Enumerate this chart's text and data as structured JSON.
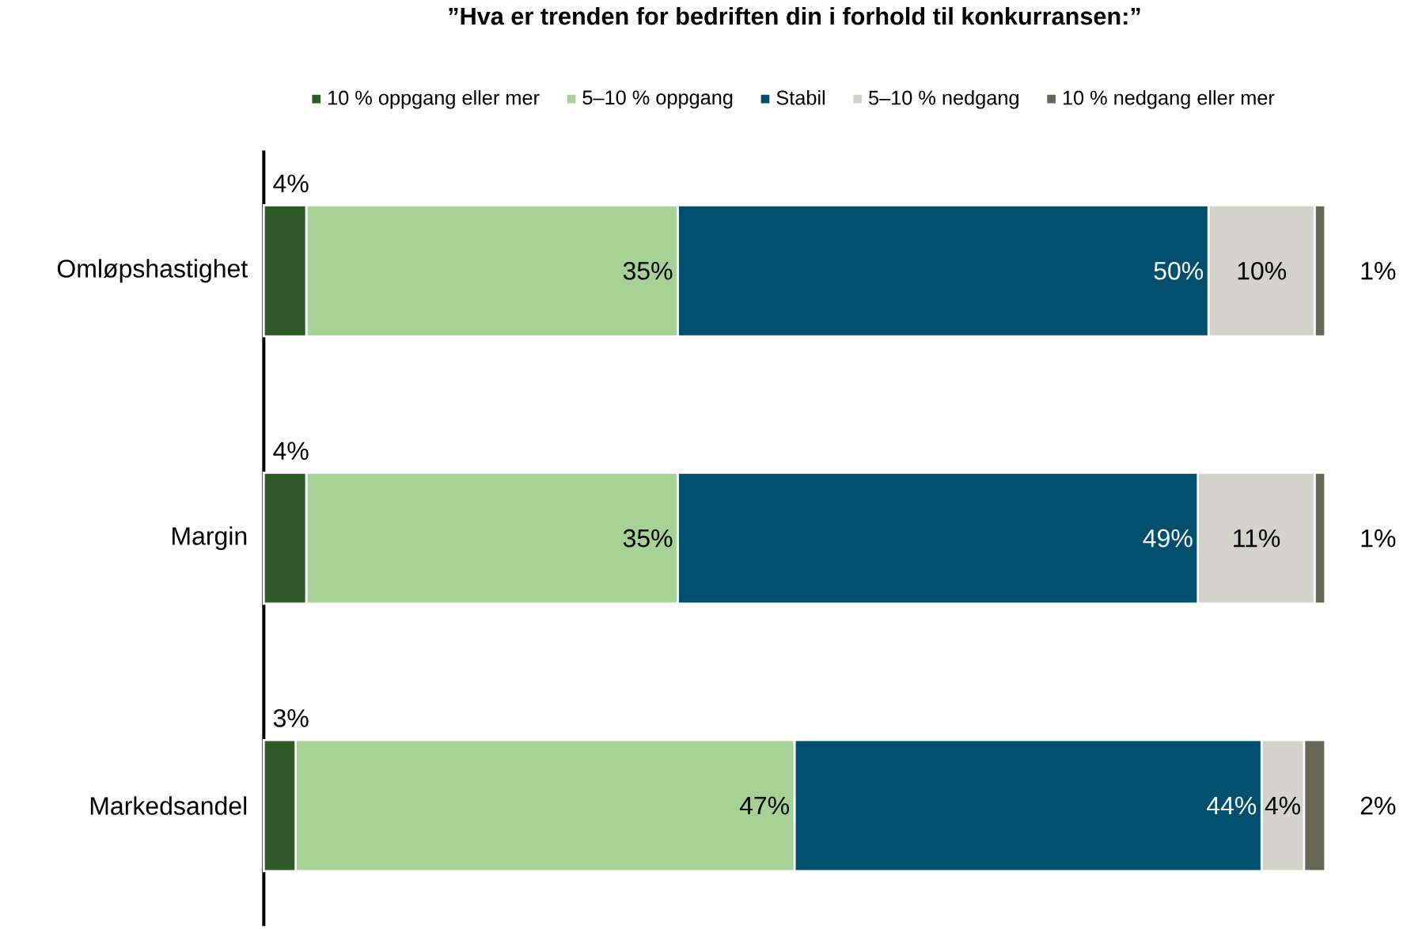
{
  "chart_data": {
    "type": "bar",
    "orientation": "horizontal",
    "stacked": true,
    "title": "”Hva er trenden for bedriften din i forhold til konkurransen:”",
    "categories": [
      "Omløpshastighet",
      "Margin",
      "Markedsandel"
    ],
    "xlim": [
      0,
      100
    ],
    "tick_labels": "y",
    "legend": "top",
    "series": [
      {
        "name": "10 % oppgang eller mer",
        "color": "#2d5a27",
        "values": [
          4,
          4,
          3
        ],
        "value_labels": [
          "4%",
          "4%",
          "3%"
        ]
      },
      {
        "name": "5–10 % oppgang",
        "color": "#a6d395",
        "values": [
          35,
          35,
          47
        ],
        "value_labels": [
          "35%",
          "35%",
          "47%"
        ]
      },
      {
        "name": "Stabil",
        "color": "#004f6e",
        "values": [
          50,
          49,
          44
        ],
        "value_labels": [
          "50%",
          "49%",
          "44%"
        ]
      },
      {
        "name": "5–10 % nedgang",
        "color": "#d3d3cb",
        "values": [
          10,
          11,
          4
        ],
        "value_labels": [
          "10%",
          "11%",
          "4%"
        ]
      },
      {
        "name": "10 % nedgang eller mer",
        "color": "#666656",
        "values": [
          1,
          1,
          2
        ],
        "value_labels": [
          "1%",
          "1%",
          "2%"
        ]
      }
    ]
  }
}
